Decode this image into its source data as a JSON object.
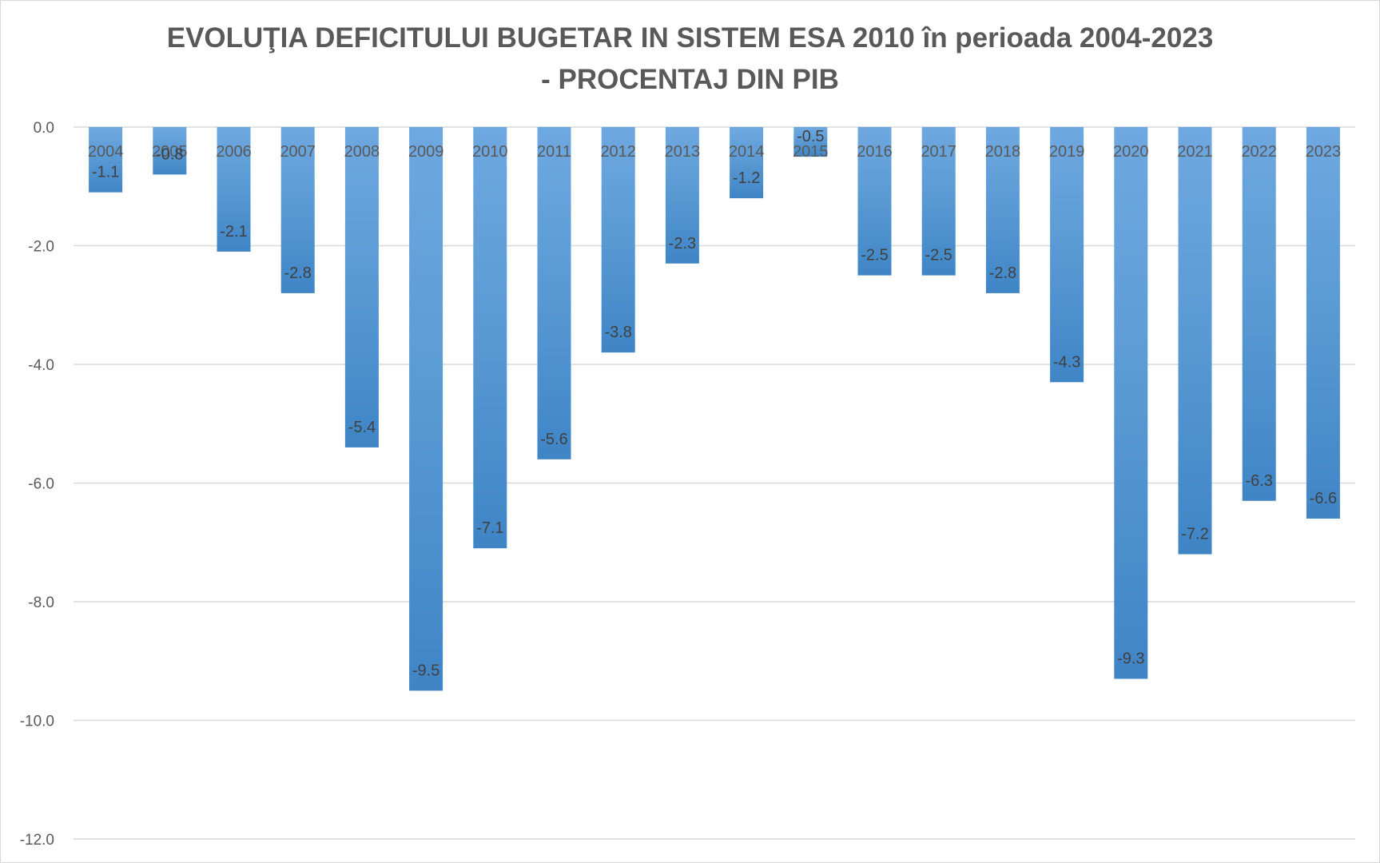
{
  "chart_data": {
    "type": "bar",
    "title_line1": "EVOLUŢIA DEFICITULUI BUGETAR IN SISTEM ESA 2010 în perioada 2004-2023",
    "title_line2": "- PROCENTAJ DIN PIB",
    "xlabel": "",
    "ylabel": "",
    "categories": [
      "2004",
      "2005",
      "2006",
      "2007",
      "2008",
      "2009",
      "2010",
      "2011",
      "2012",
      "2013",
      "2014",
      "2015",
      "2016",
      "2017",
      "2018",
      "2019",
      "2020",
      "2021",
      "2022",
      "2023"
    ],
    "values": [
      -1.1,
      -0.8,
      -2.1,
      -2.8,
      -5.4,
      -9.5,
      -7.1,
      -5.6,
      -3.8,
      -2.3,
      -1.2,
      -0.5,
      -2.5,
      -2.5,
      -2.8,
      -4.3,
      -9.3,
      -7.2,
      -6.3,
      -6.6
    ],
    "ylim": [
      -12.0,
      0.0
    ],
    "yticks": [
      "0.0",
      "-2.0",
      "-4.0",
      "-6.0",
      "-8.0",
      "-10.0",
      "-12.0"
    ],
    "ytick_values": [
      0,
      -2,
      -4,
      -6,
      -8,
      -10,
      -12
    ],
    "grid": true,
    "legend": "none",
    "bar_color_light": "#6fa8e0",
    "bar_color_mid": "#5b9bd5",
    "bar_color_dark": "#3f85c6"
  }
}
